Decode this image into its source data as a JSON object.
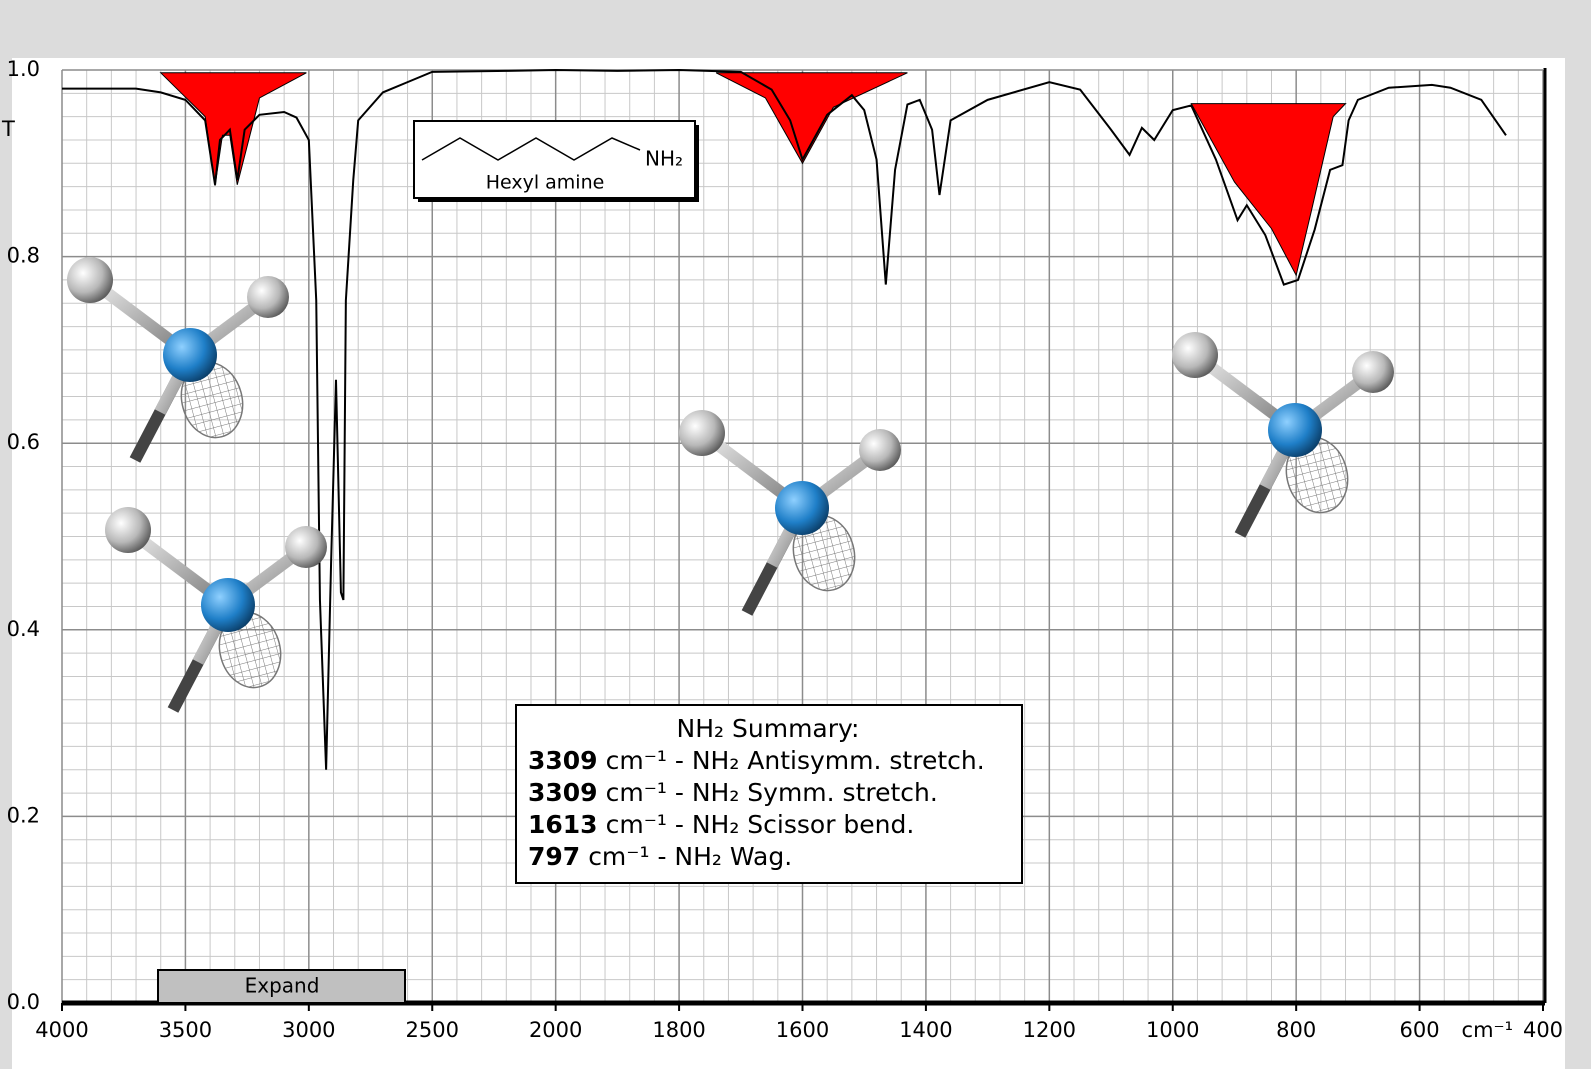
{
  "chart_data": {
    "type": "line",
    "ylabel": "T",
    "xlabel": "cm⁻¹",
    "xlim": [
      4000,
      400
    ],
    "xticks": [
      4000,
      3500,
      3000,
      2500,
      2000,
      1800,
      1600,
      1400,
      1200,
      1000,
      800,
      600,
      400
    ],
    "ylim": [
      0,
      1
    ],
    "yticks": [
      {
        "value": 0,
        "label": "0.0"
      },
      {
        "value": 0.2,
        "label": "0.2"
      },
      {
        "value": 0.4,
        "label": "0.4"
      },
      {
        "value": 0.6,
        "label": "0.6"
      },
      {
        "value": 0.8,
        "label": "0.8"
      },
      {
        "value": 1,
        "label": "1.0"
      }
    ],
    "grid": true,
    "minor_grid": {
      "x": 5,
      "y": 8
    },
    "color": "#000000",
    "x": [
      4000,
      3700,
      3600,
      3500,
      3420,
      3380,
      3360,
      3320,
      3290,
      3260,
      3200,
      3100,
      3050,
      3000,
      2970,
      2955,
      2930,
      2910,
      2890,
      2870,
      2860,
      2850,
      2820,
      2800,
      2700,
      2600,
      2500,
      2200,
      2000,
      1900,
      1800,
      1700,
      1650,
      1620,
      1600,
      1560,
      1520,
      1500,
      1480,
      1465,
      1450,
      1430,
      1410,
      1390,
      1378,
      1360,
      1300,
      1200,
      1150,
      1100,
      1070,
      1050,
      1030,
      1000,
      970,
      930,
      895,
      880,
      850,
      820,
      797,
      770,
      745,
      725,
      715,
      700,
      650,
      580,
      550,
      500,
      460
    ],
    "values": [
      0.98,
      0.98,
      0.976,
      0.968,
      0.946,
      0.877,
      0.925,
      0.936,
      0.882,
      0.936,
      0.952,
      0.955,
      0.949,
      0.925,
      0.753,
      0.432,
      0.25,
      0.47,
      0.668,
      0.44,
      0.432,
      0.753,
      0.882,
      0.946,
      0.976,
      0.987,
      0.998,
      0.999,
      1.0,
      0.999,
      1.0,
      0.998,
      0.979,
      0.946,
      0.904,
      0.952,
      0.973,
      0.957,
      0.904,
      0.77,
      0.893,
      0.963,
      0.968,
      0.936,
      0.866,
      0.946,
      0.968,
      0.987,
      0.979,
      0.936,
      0.909,
      0.938,
      0.925,
      0.957,
      0.962,
      0.904,
      0.839,
      0.855,
      0.823,
      0.77,
      0.775,
      0.829,
      0.893,
      0.898,
      0.946,
      0.968,
      0.981,
      0.984,
      0.981,
      0.968,
      0.93
    ],
    "highlights": [
      {
        "color": "#ff0000",
        "x": [
          3600,
          3420,
          3380,
          3350,
          3320,
          3290,
          3200,
          3010
        ],
        "values": [
          0.997,
          0.95,
          0.876,
          0.93,
          0.93,
          0.877,
          0.97,
          0.997
        ]
      },
      {
        "color": "#ff0000",
        "x": [
          1740,
          1660,
          1600,
          1550,
          1430
        ],
        "values": [
          0.997,
          0.97,
          0.9,
          0.96,
          0.997
        ]
      },
      {
        "color": "#ff0000",
        "x": [
          970,
          900,
          840,
          800,
          775,
          740,
          720
        ],
        "values": [
          0.964,
          0.88,
          0.83,
          0.78,
          0.85,
          0.95,
          0.964
        ]
      }
    ],
    "structure": {
      "group": "NH₂",
      "name": "Hexyl amine"
    },
    "summary": {
      "title": "NH₂ Summary:",
      "items": [
        {
          "value": 3309,
          "text": "cm⁻¹ - NH₂ Antisymm. stretch."
        },
        {
          "value": 3309,
          "text": "cm⁻¹ - NH₂ Symm. stretch."
        },
        {
          "value": 1613,
          "text": "cm⁻¹ - NH₂ Scissor bend."
        },
        {
          "value": 797,
          "text": "cm⁻¹ - NH₂ Wag."
        }
      ]
    }
  },
  "button": "Expand"
}
